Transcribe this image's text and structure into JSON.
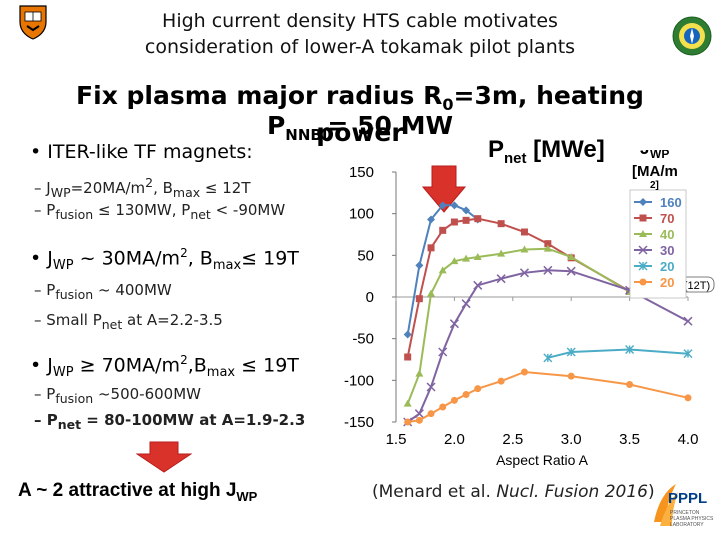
{
  "slide": {
    "title_line1": "High current density HTS cable motivates",
    "title_line2": "consideration of lower-A tokamak pilot plants",
    "subtitle_line1": "Fix plasma major radius R",
    "subtitle_r0_sub": "0",
    "subtitle_r0_rest": "=3m, heating power",
    "subtitle_line2_p": "P",
    "subtitle_line2_sub": "NNBI",
    "subtitle_line2_rest": "= 50 MW",
    "bullets": [
      {
        "text": "ITER-like TF magnets:"
      },
      {
        "text": "J"
      },
      {
        "text": "J"
      },
      {
        "text": "≥ 70MA/m"
      }
    ],
    "b1_sub1_a": "– J",
    "b1_sub1_sub": "WP",
    "b1_sub1_b": "=20MA/m",
    "b1_sub1_sup": "2",
    "b1_sub1_c": ", B",
    "b1_sub1_sub2": "max",
    "b1_sub1_d": " ≤ 12T",
    "b1_sub2_a": "– P",
    "b1_sub2_sub": "fusion",
    "b1_sub2_b": " ≤ 130MW, P",
    "b1_sub2_sub2": "net",
    "b1_sub2_c": " < -90MW",
    "b2_a": "J",
    "b2_sub": "WP",
    "b2_b": " ~ 30MA/m",
    "b2_sup": "2",
    "b2_c": ", B",
    "b2_sub2": "max",
    "b2_d": "≤ 19T",
    "b2_sub1_a": "– P",
    "b2_sub1_sub": "fusion",
    "b2_sub1_b": " ~ 400MW",
    "b2_sub2_a": "– Small P",
    "b2_sub2_sub": "net",
    "b2_sub2_b": " at A=2.2-3.5",
    "b3_a": "J",
    "b3_sub": "WP",
    "b3_b": " ≥ 70MA/m",
    "b3_sup": "2",
    "b3_c": ",B",
    "b3_sub2": "max",
    "b3_d": " ≤ 19T",
    "b3_sub1_a": "– P",
    "b3_sub1_sub": "fusion",
    "b3_sub1_b": " ~500-600MW",
    "b3_sub2_a": "– P",
    "b3_sub2_sub": "net",
    "b3_sub2_b": " = 80-100MW at A=1.9-2.3",
    "conclusion_a": "A ~ 2 attractive at high J",
    "conclusion_sub": "WP",
    "citation_a": "(Menard et al. ",
    "citation_journal": "Nucl. Fusion 2016",
    "citation_b": ")",
    "pppl_label": "PPPL",
    "pppl_small": "PRINCETON PLASMA PHYSICS LABORATORY"
  },
  "colors": {
    "arrow": "#d9322b",
    "s160": "#4f81bd",
    "s70": "#c0504d",
    "s40": "#9bbb59",
    "s30": "#8064a2",
    "s20": "#4bacc6",
    "s20b": "#f79646"
  },
  "chart_data": {
    "type": "line",
    "title": "P",
    "title_sub": "net",
    "title_rest": " [MWe]",
    "legend_title_a": "J",
    "legend_title_sub": "WP",
    "legend_title_b": "[MA/m",
    "legend_title_c": "2]",
    "xlabel": "Aspect Ratio A",
    "ylabel": "",
    "xlim": [
      1.5,
      4.0
    ],
    "ylim": [
      -150,
      150
    ],
    "x_ticks": [
      "1.5",
      "2.0",
      "2.5",
      "3.0",
      "3.5",
      "4.0"
    ],
    "y_ticks": [
      "150",
      "100",
      "50",
      "0",
      "-50",
      "-100",
      "-150"
    ],
    "annotation_12t": "(12T)",
    "legend": "right",
    "series": [
      {
        "name": "160",
        "marker": "diamond",
        "x": [
          1.6,
          1.7,
          1.8,
          1.9,
          2.0,
          2.1,
          2.2
        ],
        "y": [
          -45,
          38,
          93,
          110,
          110,
          104,
          93
        ]
      },
      {
        "name": "70",
        "marker": "square",
        "x": [
          1.6,
          1.7,
          1.8,
          1.9,
          2.0,
          2.1,
          2.2,
          2.4,
          2.6,
          2.8,
          3.0,
          3.5
        ],
        "y": [
          -72,
          -2,
          59,
          80,
          90,
          92,
          94,
          88,
          78,
          64,
          47,
          7
        ]
      },
      {
        "name": "40",
        "marker": "triangle",
        "x": [
          1.6,
          1.7,
          1.8,
          1.9,
          2.0,
          2.1,
          2.2,
          2.4,
          2.6,
          2.8,
          3.0,
          3.5
        ],
        "y": [
          -128,
          -92,
          4,
          32,
          43,
          46,
          48,
          52,
          57,
          58,
          48,
          6
        ]
      },
      {
        "name": "30",
        "marker": "x",
        "x": [
          1.6,
          1.7,
          1.8,
          1.9,
          2.0,
          2.1,
          2.2,
          2.4,
          2.6,
          2.8,
          3.0,
          3.5,
          4.0
        ],
        "y": [
          -150,
          -140,
          -108,
          -66,
          -32,
          -8,
          14,
          22,
          29,
          32,
          31,
          8,
          -29
        ]
      },
      {
        "name": "20",
        "marker": "star",
        "x": [
          2.8,
          3.0,
          3.5,
          4.0
        ],
        "y": [
          -73,
          -66,
          -63,
          -68
        ]
      },
      {
        "name": "20",
        "marker": "circle",
        "x": [
          1.6,
          1.7,
          1.8,
          1.9,
          2.0,
          2.1,
          2.2,
          2.4,
          2.6,
          3.0,
          3.5,
          4.0
        ],
        "y": [
          -150,
          -148,
          -140,
          -132,
          -124,
          -117,
          -110,
          -101,
          -90,
          -95,
          -105,
          -121
        ]
      }
    ]
  }
}
